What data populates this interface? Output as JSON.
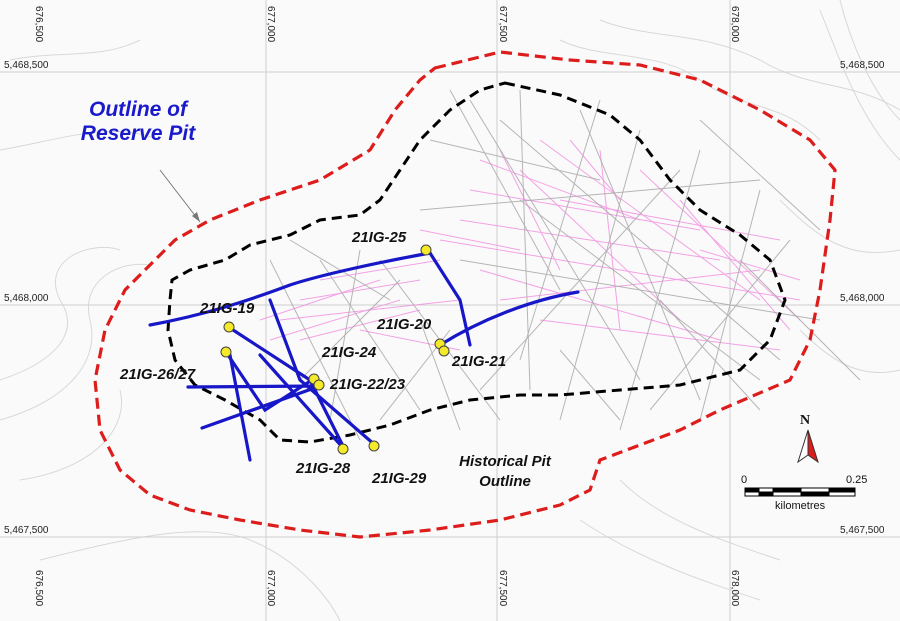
{
  "map": {
    "grid_x_labels": [
      "676,500",
      "677,000",
      "677,500",
      "678,000"
    ],
    "grid_y_labels": [
      "5,468,500",
      "5,468,000",
      "5,467,500"
    ],
    "title_line1": "Outline of",
    "title_line2": "Reserve Pit",
    "historical_line1": "Historical Pit",
    "historical_line2": "Outline",
    "drillholes": [
      "21IG-25",
      "21IG-19",
      "21IG-20",
      "21IG-24",
      "21IG-21",
      "21IG-26/27",
      "21IG-22/23",
      "21IG-28",
      "21IG-29"
    ],
    "north_label": "N",
    "scale_start": "0",
    "scale_end": "0.25",
    "scale_unit": "kilometres",
    "colors": {
      "reserve_pit": "#dd1c1c",
      "historical_pit": "#000000",
      "drill_trace": "#1717c8",
      "collar": "#f4ea2a",
      "assay": "#f28be0"
    }
  }
}
